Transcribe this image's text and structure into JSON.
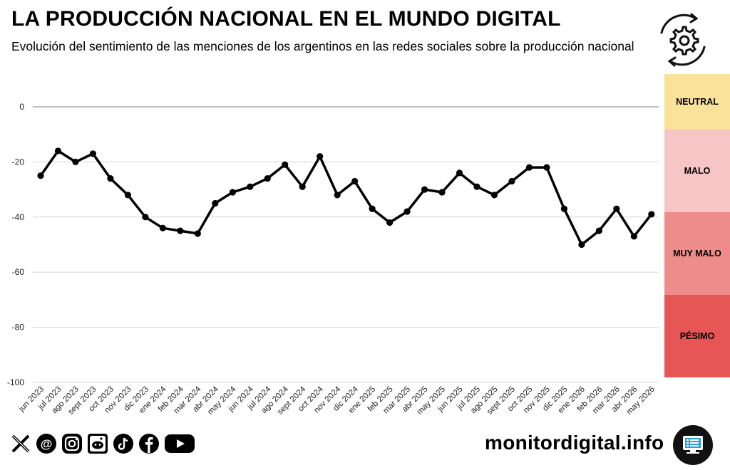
{
  "header": {
    "title": "LA PRODUCCIÓN NACIONAL EN EL MUNDO DIGITAL",
    "subtitle": "Evolución del sentimiento de las menciones de los argentinos en las redes sociales sobre la producción nacional"
  },
  "sentiment_bands": [
    {
      "label": "NEUTRAL",
      "color": "#fae29b"
    },
    {
      "label": "MALO",
      "color": "#f6c5c5"
    },
    {
      "label": "MUY MALO",
      "color": "#ee8c8b"
    },
    {
      "label": "PÉSIMO",
      "color": "#e55655"
    }
  ],
  "chart_data": {
    "type": "line",
    "x": [
      "jun 2023",
      "jul 2023",
      "ago 2023",
      "sept 2023",
      "oct 2023",
      "nov 2023",
      "dic 2023",
      "ene 2024",
      "feb 2024",
      "mar 2024",
      "abr 2024",
      "may 2024",
      "jun 2024",
      "jul 2024",
      "ago 2024",
      "sept 2024",
      "oct 2024",
      "nov 2024",
      "dic 2024",
      "ene 2025",
      "feb 2025",
      "mar 2025",
      "abr 2025",
      "may 2025",
      "jun 2025",
      "jul 2025",
      "ago 2025",
      "sept 2025",
      "oct 2025",
      "nov 2025",
      "dic 2025",
      "ene 2026",
      "feb 2026",
      "mar 2026",
      "abr 2026",
      "may 2026"
    ],
    "series": [
      {
        "values": [
          -25,
          -16,
          -20,
          -17,
          -26,
          -32,
          -40,
          -44,
          -45,
          -46,
          -35,
          -31,
          -29,
          -26,
          -21,
          -29,
          -18,
          -32,
          -27,
          -37,
          -42,
          -38,
          -30,
          -31,
          -24,
          -29,
          -32,
          -27,
          -22,
          -22,
          -37,
          -50,
          -45,
          -37,
          -47,
          -39
        ]
      }
    ],
    "yticks": [
      0,
      -20,
      -40,
      -60,
      -80,
      -100
    ],
    "ylim": [
      -100,
      0
    ],
    "grid": true,
    "line_color": "#000000"
  },
  "footer": {
    "site": "monitordigital.info",
    "social_icons": [
      "x-icon",
      "threads-icon",
      "instagram-icon",
      "reddit-icon",
      "tiktok-icon",
      "facebook-icon",
      "youtube-icon"
    ]
  }
}
